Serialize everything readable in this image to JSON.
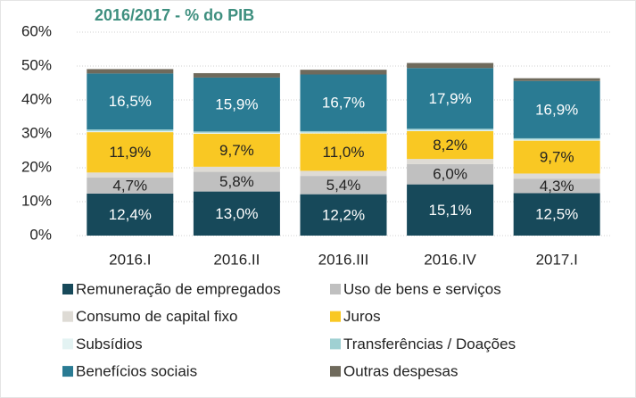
{
  "chart_data": {
    "type": "stacked_bar",
    "title": "2016/2017 - % do PIB",
    "categories": [
      "2016.I",
      "2016.II",
      "2016.III",
      "2016.IV",
      "2017.I"
    ],
    "series": [
      {
        "name": "Remuneração de empregados",
        "color": "#17495a",
        "values": [
          12.4,
          13.0,
          12.2,
          15.1,
          12.5
        ],
        "value_labels": [
          "12,4%",
          "13,0%",
          "12,2%",
          "15,1%",
          "12,5%"
        ]
      },
      {
        "name": "Uso de bens e serviços",
        "color": "#c0c0c0",
        "values": [
          4.7,
          5.8,
          5.4,
          6.0,
          4.3
        ],
        "value_labels": [
          "4,7%",
          "5,8%",
          "5,4%",
          "6,0%",
          "4,3%"
        ]
      },
      {
        "name": "Consumo de capital fixo",
        "color": "#dedbd5",
        "values": [
          1.5,
          1.5,
          1.5,
          1.5,
          1.5
        ]
      },
      {
        "name": "Juros",
        "color": "#f9c823",
        "values": [
          11.9,
          9.7,
          11.0,
          8.2,
          9.7
        ],
        "value_labels": [
          "11,9%",
          "9,7%",
          "11,0%",
          "8,2%",
          "9,7%"
        ]
      },
      {
        "name": "Subsídios",
        "color": "#e3f3f3",
        "values": [
          0.3,
          0.3,
          0.3,
          0.3,
          0.3
        ]
      },
      {
        "name": "Transferências / Doações",
        "color": "#9fd0d2",
        "values": [
          0.5,
          0.4,
          0.4,
          0.4,
          0.4
        ]
      },
      {
        "name": "Benefícios sociais",
        "color": "#2a7b93",
        "values": [
          16.5,
          15.9,
          16.7,
          17.9,
          16.9
        ],
        "value_labels": [
          "16,5%",
          "15,9%",
          "16,7%",
          "17,9%",
          "16,9%"
        ]
      },
      {
        "name": "Outras despesas",
        "color": "#6f6a5c",
        "values": [
          1.3,
          1.3,
          1.4,
          1.5,
          0.8
        ]
      }
    ],
    "ylim": [
      0,
      60
    ],
    "yticks": [
      {
        "value": 0,
        "label": "0%"
      },
      {
        "value": 10,
        "label": "10%"
      },
      {
        "value": 20,
        "label": "20%"
      },
      {
        "value": 30,
        "label": "30%"
      },
      {
        "value": 40,
        "label": "40%"
      },
      {
        "value": 50,
        "label": "50%"
      },
      {
        "value": 60,
        "label": "60%"
      }
    ],
    "grid": true,
    "legend": "bottom"
  }
}
